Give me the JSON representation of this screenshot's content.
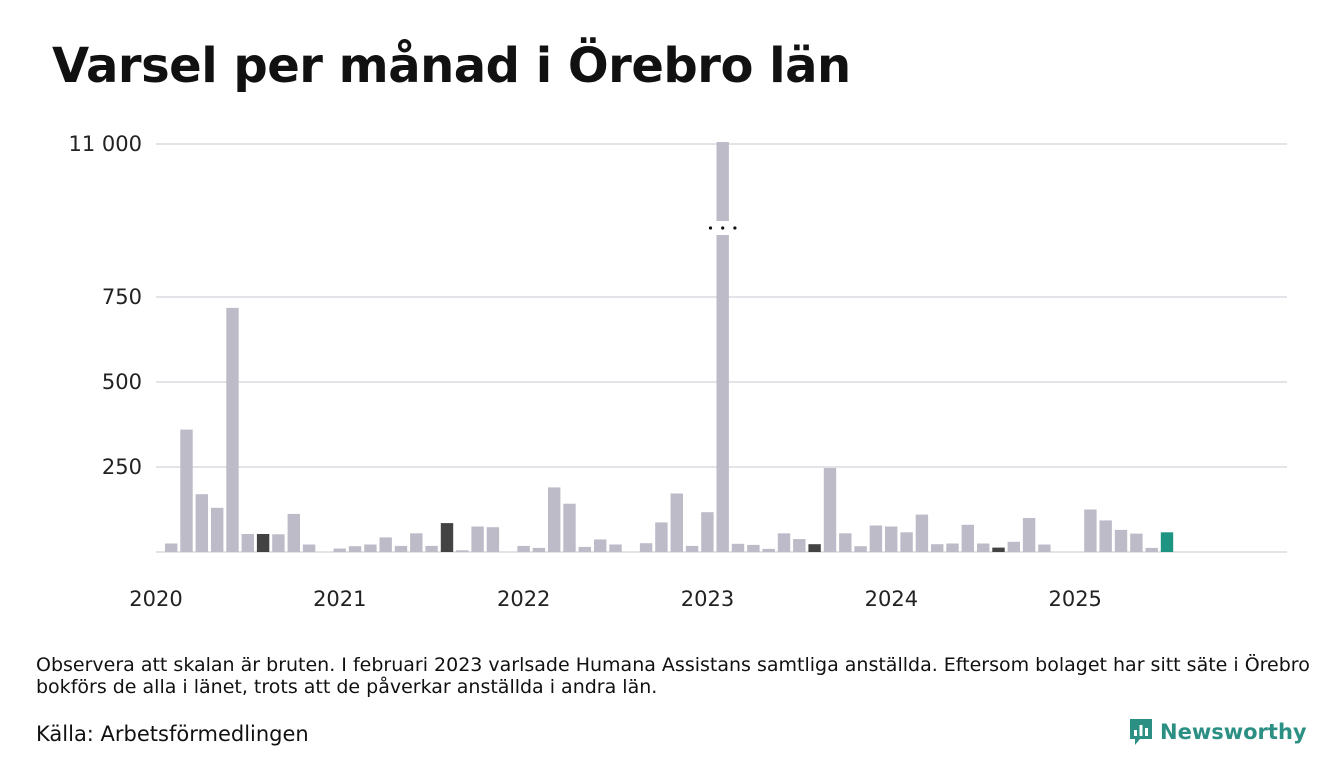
{
  "title": "Varsel per månad i Örebro län",
  "note": "Observera att skalan är bruten. I februari 2023 varlsade Humana Assistans samtliga anställda. Eftersom bolaget har sitt säte i Örebro bokförs de alla i länet, trots att de påverkar anställda i andra län.",
  "source": "Källa: Arbetsförmedlingen",
  "brand": "Newsworthy",
  "brand_icon": "newsworthy-logo-icon",
  "colors": {
    "bar": "#bdbbc7",
    "highlight": "#434343",
    "latest": "#1e9483",
    "grid": "#e3e3e8",
    "brand": "#2b8f83"
  },
  "chart_data": {
    "type": "bar",
    "broken_axis": true,
    "y_ticks": [
      250,
      500,
      750,
      11000
    ],
    "y_tick_labels": [
      "250",
      "500",
      "750",
      "11 000"
    ],
    "x_tick_labels": [
      "2020",
      "2021",
      "2022",
      "2023",
      "2024",
      "2025"
    ],
    "ylim": [
      0,
      11000
    ],
    "grid": true,
    "start": "2020-01",
    "end": "2025-12",
    "values": [
      25,
      360,
      170,
      130,
      718,
      53,
      53,
      52,
      112,
      22,
      0,
      10,
      17,
      22,
      43,
      18,
      55,
      18,
      85,
      5,
      75,
      73,
      0,
      18,
      12,
      190,
      142,
      15,
      37,
      22,
      0,
      26,
      87,
      172,
      18,
      117,
      11200,
      24,
      21,
      9,
      55,
      38,
      23,
      247,
      55,
      17,
      78,
      75,
      58,
      110,
      23,
      25,
      80,
      25,
      13,
      30,
      100,
      22,
      0,
      0,
      125,
      93,
      65,
      54,
      12,
      58,
      null,
      null,
      null,
      null,
      null,
      null
    ],
    "highlight_months": [
      6,
      18,
      30,
      42,
      54
    ],
    "latest_month": 65
  }
}
